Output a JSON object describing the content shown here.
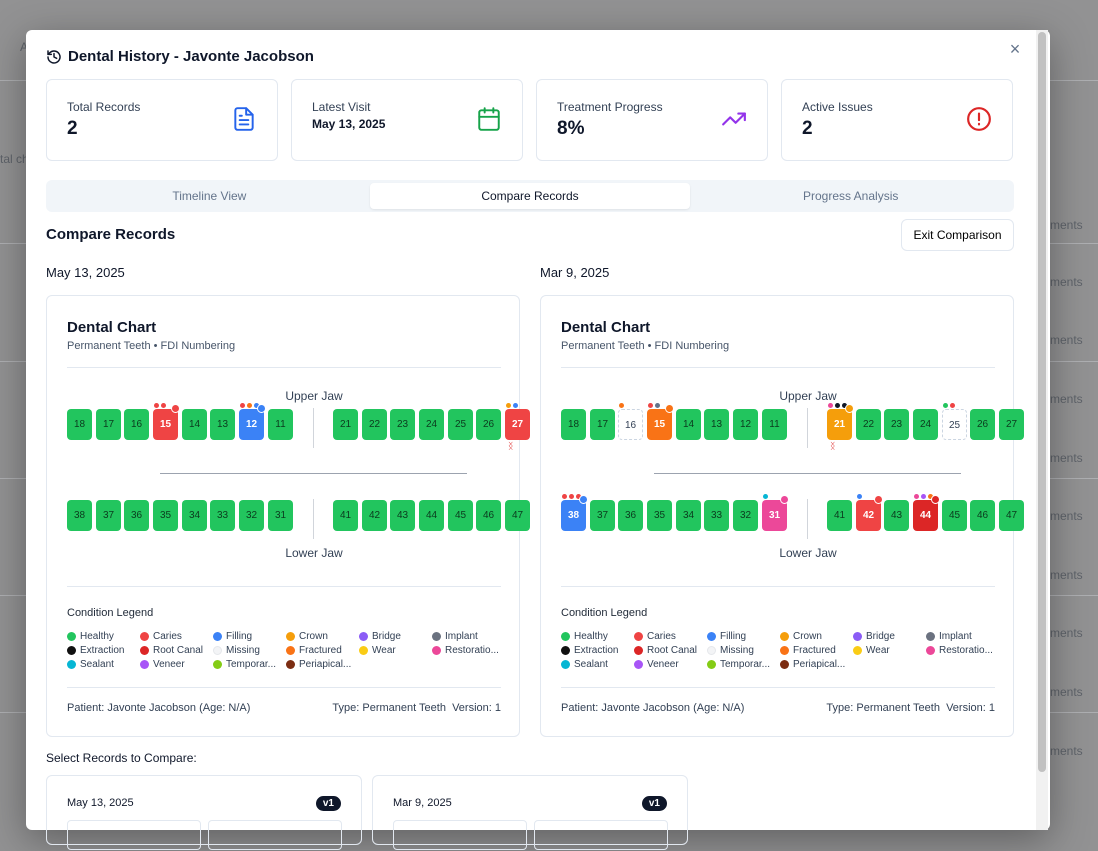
{
  "background": {
    "fragments": [
      "A",
      "tal ch",
      "ments",
      "ments",
      "ments",
      "ments",
      "ments",
      "ments",
      "ments",
      "ments",
      "ments",
      "ments"
    ]
  },
  "modal": {
    "title": "Dental History - Javonte Jacobson",
    "close_symbol": "×",
    "stats": [
      {
        "label": "Total Records",
        "value": "2",
        "icon": "file-text-icon",
        "color": "#2563eb"
      },
      {
        "label": "Latest Visit",
        "value": "May 13, 2025",
        "icon": "calendar-icon",
        "color": "#16a34a"
      },
      {
        "label": "Treatment Progress",
        "value": "8%",
        "icon": "trending-up-icon",
        "color": "#9333ea"
      },
      {
        "label": "Active Issues",
        "value": "2",
        "icon": "alert-circle-icon",
        "color": "#dc2626"
      }
    ],
    "tabs": [
      {
        "label": "Timeline View",
        "active": false
      },
      {
        "label": "Compare Records",
        "active": true
      },
      {
        "label": "Progress Analysis",
        "active": false
      }
    ],
    "section_title": "Compare Records",
    "exit_button": "Exit Comparison",
    "select_title": "Select Records to Compare:"
  },
  "records": [
    {
      "date": "May 13, 2025",
      "chart_title": "Dental Chart",
      "chart_subtitle": "Permanent Teeth • FDI Numbering",
      "upper_label": "Upper Jaw",
      "lower_label": "Lower Jaw",
      "upper": [
        {
          "n": "18",
          "s": "healthy"
        },
        {
          "n": "17",
          "s": "healthy"
        },
        {
          "n": "16",
          "s": "healthy"
        },
        {
          "n": "15",
          "s": "caries",
          "dots": [
            "#ef4444",
            "#ef4444"
          ],
          "badge": "#ef4444"
        },
        {
          "n": "14",
          "s": "healthy"
        },
        {
          "n": "13",
          "s": "healthy"
        },
        {
          "n": "12",
          "s": "filling",
          "dots": [
            "#ef4444",
            "#f97316",
            "#3b82f6"
          ],
          "badge": "#3b82f6"
        },
        {
          "n": "11",
          "s": "healthy"
        },
        {
          "n": "21",
          "s": "healthy"
        },
        {
          "n": "22",
          "s": "healthy"
        },
        {
          "n": "23",
          "s": "healthy"
        },
        {
          "n": "24",
          "s": "healthy"
        },
        {
          "n": "25",
          "s": "healthy"
        },
        {
          "n": "26",
          "s": "healthy"
        },
        {
          "n": "27",
          "s": "caries",
          "dots": [
            "#f59e0b",
            "#3b82f6"
          ],
          "mark": "ᛝ"
        }
      ],
      "lower": [
        {
          "n": "38",
          "s": "healthy"
        },
        {
          "n": "37",
          "s": "healthy"
        },
        {
          "n": "36",
          "s": "healthy"
        },
        {
          "n": "35",
          "s": "healthy"
        },
        {
          "n": "34",
          "s": "healthy"
        },
        {
          "n": "33",
          "s": "healthy"
        },
        {
          "n": "32",
          "s": "healthy"
        },
        {
          "n": "31",
          "s": "healthy"
        },
        {
          "n": "41",
          "s": "healthy"
        },
        {
          "n": "42",
          "s": "healthy"
        },
        {
          "n": "43",
          "s": "healthy"
        },
        {
          "n": "44",
          "s": "healthy"
        },
        {
          "n": "45",
          "s": "healthy"
        },
        {
          "n": "46",
          "s": "healthy"
        },
        {
          "n": "47",
          "s": "healthy"
        }
      ],
      "patient": "Patient: Javonte Jacobson (Age: N/A)",
      "type_version": "Type: Permanent Teeth  Version: 1"
    },
    {
      "date": "Mar 9, 2025",
      "chart_title": "Dental Chart",
      "chart_subtitle": "Permanent Teeth • FDI Numbering",
      "upper_label": "Upper Jaw",
      "lower_label": "Lower Jaw",
      "upper": [
        {
          "n": "18",
          "s": "healthy"
        },
        {
          "n": "17",
          "s": "healthy"
        },
        {
          "n": "16",
          "s": "missing",
          "dots": [
            "#f97316"
          ]
        },
        {
          "n": "15",
          "s": "fractured",
          "dots": [
            "#ef4444",
            "#64748b"
          ],
          "badge": "#f97316"
        },
        {
          "n": "14",
          "s": "healthy"
        },
        {
          "n": "13",
          "s": "healthy"
        },
        {
          "n": "12",
          "s": "healthy"
        },
        {
          "n": "11",
          "s": "healthy"
        },
        {
          "n": "21",
          "s": "crown",
          "dots": [
            "#ec4899",
            "#111827",
            "#111827"
          ],
          "badge": "#f59e0b",
          "mark": "ᛝ"
        },
        {
          "n": "22",
          "s": "healthy"
        },
        {
          "n": "23",
          "s": "healthy"
        },
        {
          "n": "24",
          "s": "healthy"
        },
        {
          "n": "25",
          "s": "missing",
          "dots": [
            "#22c55e",
            "#ef4444"
          ]
        },
        {
          "n": "26",
          "s": "healthy"
        },
        {
          "n": "27",
          "s": "healthy"
        }
      ],
      "lower": [
        {
          "n": "38",
          "s": "filling",
          "dots": [
            "#ef4444",
            "#ef4444",
            "#ef4444"
          ],
          "badge": "#3b82f6"
        },
        {
          "n": "37",
          "s": "healthy"
        },
        {
          "n": "36",
          "s": "healthy"
        },
        {
          "n": "35",
          "s": "healthy"
        },
        {
          "n": "34",
          "s": "healthy"
        },
        {
          "n": "33",
          "s": "healthy"
        },
        {
          "n": "32",
          "s": "healthy"
        },
        {
          "n": "31",
          "s": "restoration",
          "dots": [
            "#06b6d4"
          ],
          "badge": "#ec4899"
        },
        {
          "n": "41",
          "s": "healthy"
        },
        {
          "n": "42",
          "s": "caries",
          "dots": [
            "#3b82f6"
          ],
          "badge": "#ef4444"
        },
        {
          "n": "43",
          "s": "healthy"
        },
        {
          "n": "44",
          "s": "rootcanal",
          "dots": [
            "#ec4899",
            "#a855f7",
            "#f97316"
          ],
          "badge": "#dc2626"
        },
        {
          "n": "45",
          "s": "healthy"
        },
        {
          "n": "46",
          "s": "healthy"
        },
        {
          "n": "47",
          "s": "healthy"
        }
      ],
      "patient": "Patient: Javonte Jacobson (Age: N/A)",
      "type_version": "Type: Permanent Teeth  Version: 1"
    }
  ],
  "legend": {
    "title": "Condition Legend",
    "items": [
      {
        "label": "Healthy",
        "color": "#22c55e"
      },
      {
        "label": "Caries",
        "color": "#ef4444"
      },
      {
        "label": "Filling",
        "color": "#3b82f6"
      },
      {
        "label": "Crown",
        "color": "#f59e0b"
      },
      {
        "label": "Bridge",
        "color": "#8b5cf6"
      },
      {
        "label": "Implant",
        "color": "#6b7280"
      },
      {
        "label": "Extraction",
        "color": "#111111"
      },
      {
        "label": "Root Canal",
        "color": "#dc2626"
      },
      {
        "label": "Missing",
        "color": "#f3f4f6"
      },
      {
        "label": "Fractured",
        "color": "#f97316"
      },
      {
        "label": "Wear",
        "color": "#facc15"
      },
      {
        "label": "Restoratio...",
        "color": "#ec4899"
      },
      {
        "label": "Sealant",
        "color": "#06b6d4"
      },
      {
        "label": "Veneer",
        "color": "#a855f7"
      },
      {
        "label": "Temporar...",
        "color": "#84cc16"
      },
      {
        "label": "Periapical...",
        "color": "#7c2d12"
      }
    ]
  },
  "select_records": [
    {
      "date": "May 13, 2025",
      "version": "v1"
    },
    {
      "date": "Mar 9, 2025",
      "version": "v1"
    }
  ]
}
